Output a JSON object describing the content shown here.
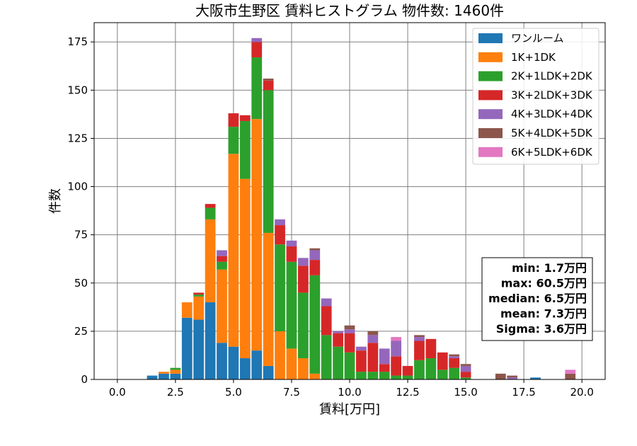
{
  "chart_data": {
    "type": "bar",
    "stacked": true,
    "title": "大阪市生野区 賃料ヒストグラム 物件数: 1460件",
    "xlabel": "賃料[万円]",
    "ylabel": "件数",
    "xlim": [
      -1.0,
      21.0
    ],
    "ylim": [
      0,
      185
    ],
    "xticks": [
      0.0,
      2.5,
      5.0,
      7.5,
      10.0,
      12.5,
      15.0,
      17.5,
      20.0
    ],
    "xtick_labels": [
      "0.0",
      "2.5",
      "5.0",
      "7.5",
      "10.0",
      "12.5",
      "15.0",
      "17.5",
      "20.0"
    ],
    "yticks": [
      0,
      25,
      50,
      75,
      100,
      125,
      150,
      175
    ],
    "ytick_labels": [
      "0",
      "25",
      "50",
      "75",
      "100",
      "125",
      "150",
      "175"
    ],
    "grid": true,
    "legend_position": "top-right",
    "bin_width": 0.5,
    "bins": [
      1.5,
      2.0,
      2.5,
      3.0,
      3.5,
      4.0,
      4.5,
      5.0,
      5.5,
      6.0,
      6.5,
      7.0,
      7.5,
      8.0,
      8.5,
      9.0,
      9.5,
      10.0,
      10.5,
      11.0,
      11.5,
      12.0,
      12.5,
      13.0,
      13.5,
      14.0,
      14.5,
      15.0,
      16.5,
      17.0,
      18.0,
      19.5
    ],
    "series": [
      {
        "name": "ワンルーム",
        "color": "#1f77b4",
        "values": [
          2,
          3,
          3,
          32,
          31,
          40,
          19,
          17,
          11,
          15,
          7,
          0,
          0,
          0,
          0,
          0,
          0,
          0,
          0,
          0,
          0,
          0,
          0,
          0,
          0,
          0,
          0,
          0,
          0,
          0,
          1,
          0
        ]
      },
      {
        "name": "1K+1DK",
        "color": "#ff7f0e",
        "values": [
          0,
          1,
          2,
          8,
          12,
          43,
          38,
          100,
          93,
          120,
          69,
          25,
          16,
          11,
          3,
          0,
          0,
          0,
          0,
          0,
          0,
          0,
          0,
          0,
          0,
          0,
          0,
          0,
          0,
          0,
          0,
          0
        ]
      },
      {
        "name": "2K+1LDK+2DK",
        "color": "#2ca02c",
        "values": [
          0,
          0,
          1,
          0,
          1,
          6,
          4,
          14,
          30,
          32,
          74,
          45,
          45,
          34,
          51,
          23,
          17,
          14,
          4,
          4,
          4,
          2,
          2,
          10,
          11,
          5,
          6,
          1,
          0,
          0,
          0,
          0
        ]
      },
      {
        "name": "3K+2LDK+3DK",
        "color": "#d62728",
        "values": [
          0,
          0,
          0,
          0,
          1,
          2,
          3,
          7,
          3,
          8,
          5,
          10,
          8,
          14,
          8,
          15,
          7,
          10,
          11,
          15,
          4,
          10,
          5,
          10,
          10,
          9,
          5,
          3,
          0,
          0,
          0,
          0
        ]
      },
      {
        "name": "4K+3LDK+4DK",
        "color": "#9467bd",
        "values": [
          0,
          0,
          0,
          0,
          0,
          0,
          3,
          0,
          0,
          2,
          0,
          3,
          3,
          4,
          5,
          4,
          1,
          2,
          2,
          4,
          8,
          8,
          0,
          2,
          0,
          0,
          1,
          3,
          0,
          1,
          0,
          0
        ]
      },
      {
        "name": "5K+4LDK+5DK",
        "color": "#8c564b",
        "values": [
          0,
          0,
          0,
          0,
          0,
          0,
          0,
          0,
          0,
          0,
          1,
          0,
          0,
          0,
          1,
          0,
          0,
          2,
          0,
          2,
          0,
          0,
          0,
          1,
          0,
          0,
          1,
          1,
          3,
          1,
          0,
          3
        ]
      },
      {
        "name": "6K+5LDK+6DK",
        "color": "#e377c2",
        "values": [
          0,
          0,
          0,
          0,
          0,
          0,
          0,
          0,
          0,
          0,
          0,
          0,
          0,
          0,
          0,
          0,
          0,
          0,
          0,
          0,
          0,
          2,
          0,
          0,
          0,
          0,
          0,
          0,
          0,
          0,
          0,
          2
        ]
      }
    ],
    "stats": [
      "min: 1.7万円",
      "max: 60.5万円",
      "median: 6.5万円",
      "mean: 7.3万円",
      "Sigma: 3.6万円"
    ]
  }
}
